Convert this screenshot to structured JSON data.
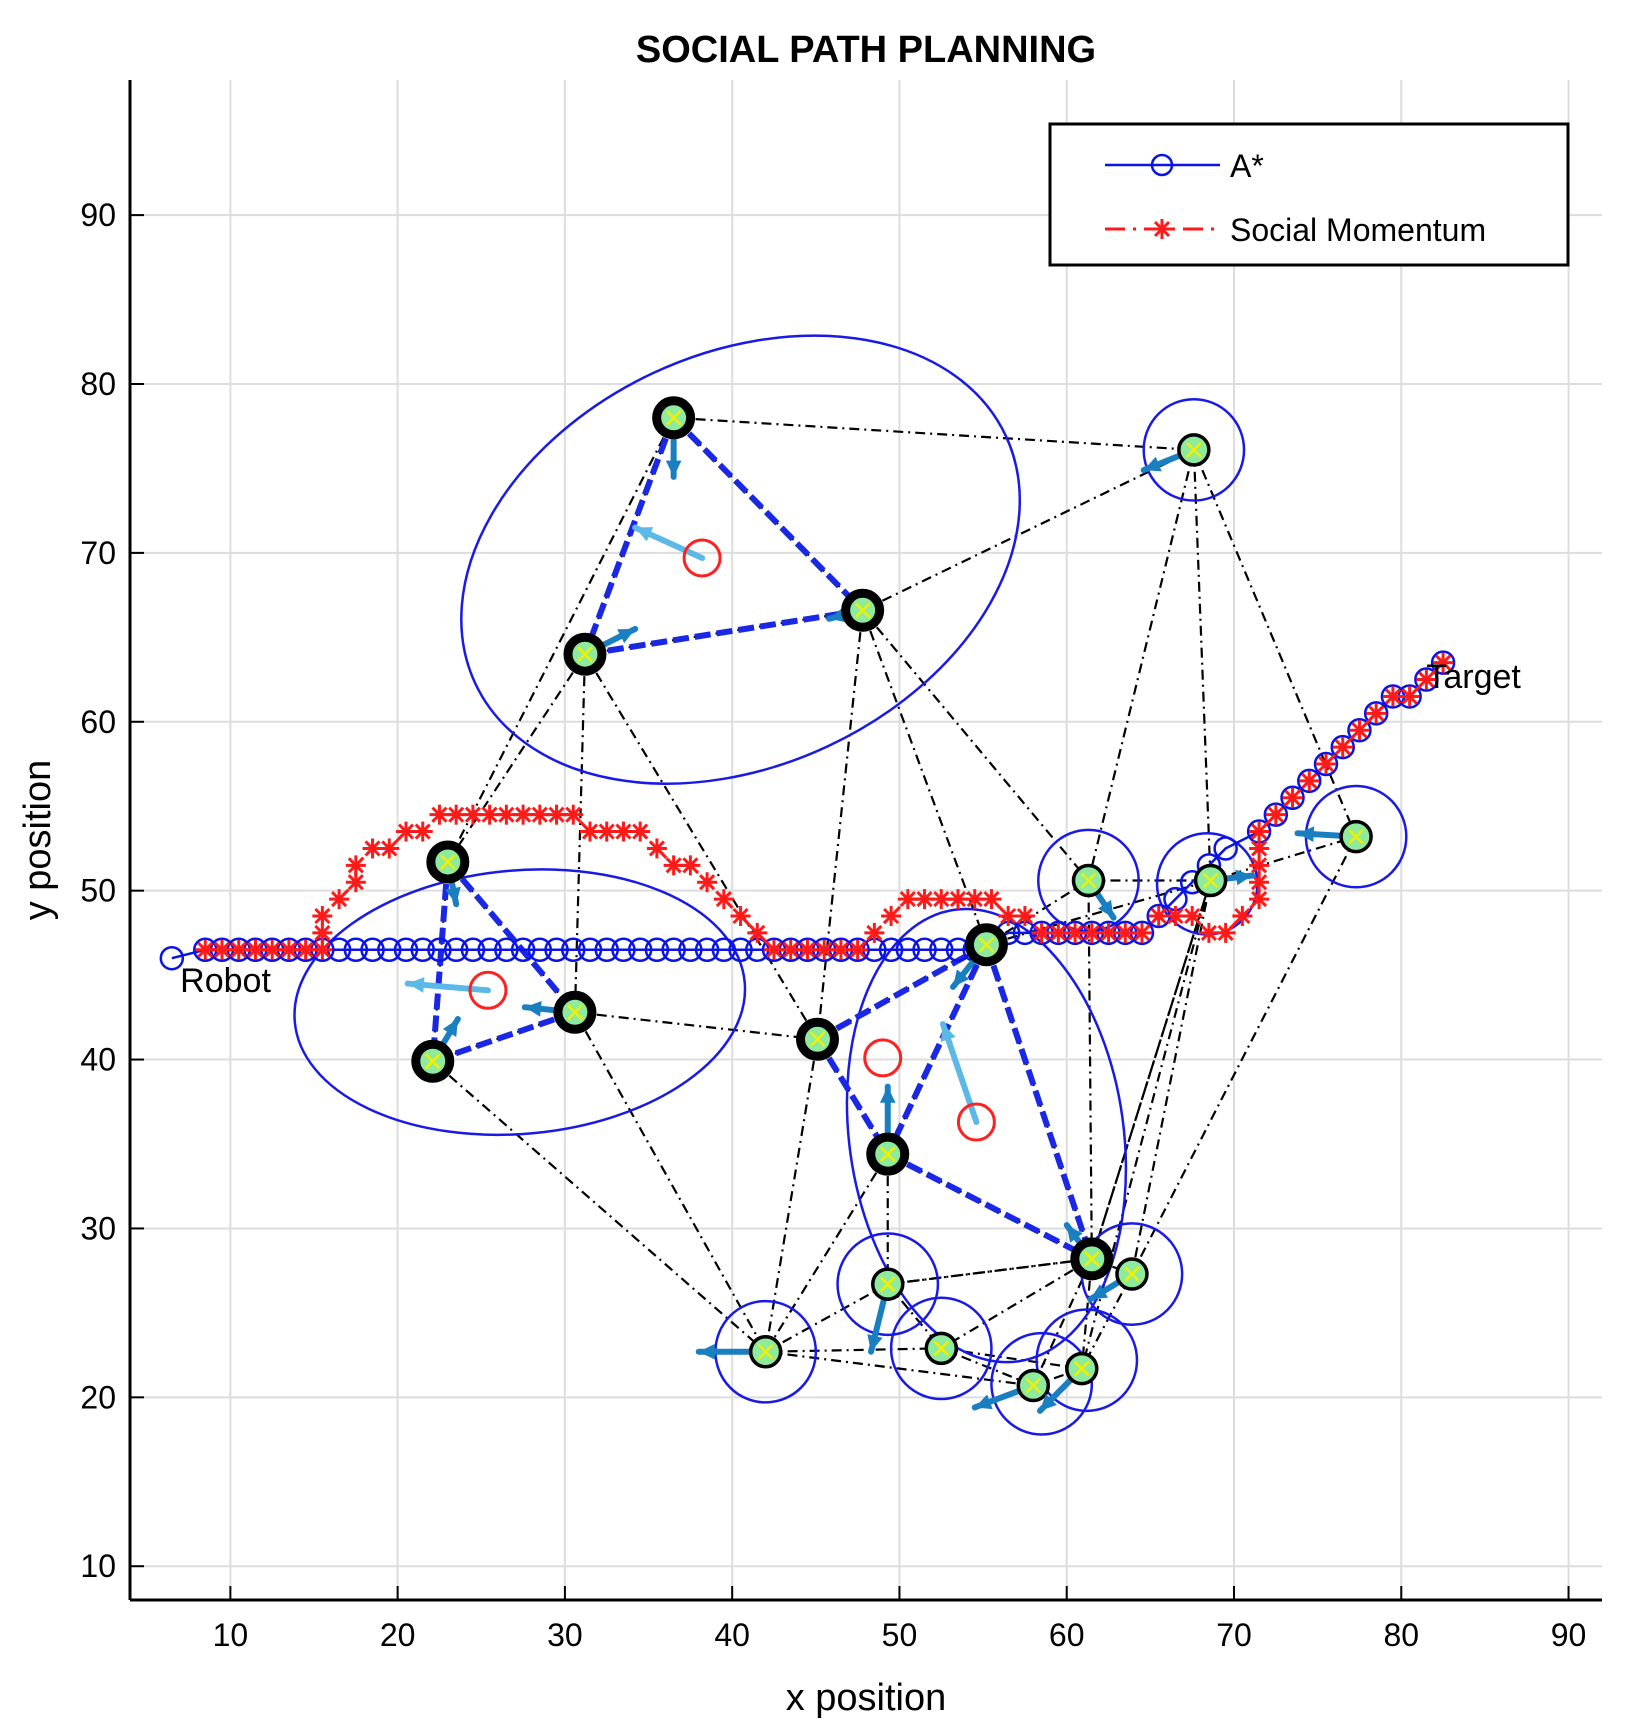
{
  "chart_data": {
    "type": "line",
    "title": "SOCIAL PATH PLANNING",
    "xlabel": "x position",
    "ylabel": "y position",
    "xlim": [
      4,
      92
    ],
    "ylim": [
      8,
      98
    ],
    "xticks": [
      10,
      20,
      30,
      40,
      50,
      60,
      70,
      80,
      90
    ],
    "yticks": [
      10,
      20,
      30,
      40,
      50,
      60,
      70,
      80,
      90
    ],
    "grid": true,
    "legend_position": "top-right",
    "colors": {
      "astar": "#0a14e6",
      "social": "#ff1a1a",
      "edge": "#000000",
      "group_edge": "#1a28e6",
      "person_fill": "#8eea9c",
      "velocity": "#1a7fc0",
      "group_velocity": "#5cb8e6",
      "marker_x": "#f0f000",
      "group_center": "#ff2020",
      "ellipse": "#1a1ae6",
      "grid": "#dddddd"
    },
    "annotations": [
      {
        "text": "Robot",
        "x": 7,
        "y": 44
      },
      {
        "text": "Target",
        "x": 81.5,
        "y": 62
      }
    ],
    "series": [
      {
        "name": "A*",
        "style": "solid-circle",
        "points": [
          [
            6.5,
            46
          ],
          [
            8.5,
            46.5
          ],
          [
            9.5,
            46.5
          ],
          [
            10.5,
            46.5
          ],
          [
            11.5,
            46.5
          ],
          [
            12.5,
            46.5
          ],
          [
            13.5,
            46.5
          ],
          [
            14.5,
            46.5
          ],
          [
            15.5,
            46.5
          ],
          [
            16.5,
            46.5
          ],
          [
            17.5,
            46.5
          ],
          [
            18.5,
            46.5
          ],
          [
            19.5,
            46.5
          ],
          [
            20.5,
            46.5
          ],
          [
            21.5,
            46.5
          ],
          [
            22.5,
            46.5
          ],
          [
            23.5,
            46.5
          ],
          [
            24.5,
            46.5
          ],
          [
            25.5,
            46.5
          ],
          [
            26.5,
            46.5
          ],
          [
            27.5,
            46.5
          ],
          [
            28.5,
            46.5
          ],
          [
            29.5,
            46.5
          ],
          [
            30.5,
            46.5
          ],
          [
            31.5,
            46.5
          ],
          [
            32.5,
            46.5
          ],
          [
            33.5,
            46.5
          ],
          [
            34.5,
            46.5
          ],
          [
            35.5,
            46.5
          ],
          [
            36.5,
            46.5
          ],
          [
            37.5,
            46.5
          ],
          [
            38.5,
            46.5
          ],
          [
            39.5,
            46.5
          ],
          [
            40.5,
            46.5
          ],
          [
            41.5,
            46.5
          ],
          [
            42.5,
            46.5
          ],
          [
            43.5,
            46.5
          ],
          [
            44.5,
            46.5
          ],
          [
            45.5,
            46.5
          ],
          [
            46.5,
            46.5
          ],
          [
            47.5,
            46.5
          ],
          [
            48.5,
            46.5
          ],
          [
            49.5,
            46.5
          ],
          [
            50.5,
            46.5
          ],
          [
            51.5,
            46.5
          ],
          [
            52.5,
            46.5
          ],
          [
            53.5,
            46.5
          ],
          [
            54.5,
            46.5
          ],
          [
            55.5,
            47
          ],
          [
            56.5,
            47.5
          ],
          [
            57.5,
            47.5
          ],
          [
            58.5,
            47.5
          ],
          [
            59.5,
            47.5
          ],
          [
            60.5,
            47.5
          ],
          [
            61.5,
            47.5
          ],
          [
            62.5,
            47.5
          ],
          [
            63.5,
            47.5
          ],
          [
            64.5,
            47.5
          ],
          [
            65.5,
            48.5
          ],
          [
            66.5,
            49.5
          ],
          [
            67.5,
            50.5
          ],
          [
            68.5,
            51.5
          ],
          [
            69.5,
            52.5
          ],
          [
            71.5,
            53.5
          ],
          [
            72.5,
            54.5
          ],
          [
            73.5,
            55.5
          ],
          [
            74.5,
            56.5
          ],
          [
            75.5,
            57.5
          ],
          [
            76.5,
            58.5
          ],
          [
            77.5,
            59.5
          ],
          [
            78.5,
            60.5
          ],
          [
            79.5,
            61.5
          ],
          [
            80.5,
            61.5
          ],
          [
            81.5,
            62.5
          ],
          [
            82.5,
            63.5
          ]
        ]
      },
      {
        "name": "Social Momentum",
        "style": "dashdot-asterisk",
        "points": [
          [
            8.5,
            46.5
          ],
          [
            9.5,
            46.5
          ],
          [
            10.5,
            46.5
          ],
          [
            11.5,
            46.5
          ],
          [
            12.5,
            46.5
          ],
          [
            13.5,
            46.5
          ],
          [
            14.5,
            46.5
          ],
          [
            15.5,
            46.5
          ],
          [
            15.5,
            47.5
          ],
          [
            15.5,
            48.5
          ],
          [
            16.5,
            49.5
          ],
          [
            17.5,
            50.5
          ],
          [
            17.5,
            51.5
          ],
          [
            18.5,
            52.5
          ],
          [
            19.5,
            52.5
          ],
          [
            20.5,
            53.5
          ],
          [
            21.5,
            53.5
          ],
          [
            22.5,
            54.5
          ],
          [
            23.5,
            54.5
          ],
          [
            24.5,
            54.5
          ],
          [
            25.5,
            54.5
          ],
          [
            26.5,
            54.5
          ],
          [
            27.5,
            54.5
          ],
          [
            28.5,
            54.5
          ],
          [
            29.5,
            54.5
          ],
          [
            30.5,
            54.5
          ],
          [
            31.5,
            53.5
          ],
          [
            32.5,
            53.5
          ],
          [
            33.5,
            53.5
          ],
          [
            34.5,
            53.5
          ],
          [
            35.5,
            52.5
          ],
          [
            36.5,
            51.5
          ],
          [
            37.5,
            51.5
          ],
          [
            38.5,
            50.5
          ],
          [
            39.5,
            49.5
          ],
          [
            40.5,
            48.5
          ],
          [
            41.5,
            47.5
          ],
          [
            42.5,
            46.5
          ],
          [
            43.5,
            46.5
          ],
          [
            44.5,
            46.5
          ],
          [
            45.5,
            46.5
          ],
          [
            46.5,
            46.5
          ],
          [
            47.5,
            46.5
          ],
          [
            48.5,
            47.5
          ],
          [
            49.5,
            48.5
          ],
          [
            50.5,
            49.5
          ],
          [
            51.5,
            49.5
          ],
          [
            52.5,
            49.5
          ],
          [
            53.5,
            49.5
          ],
          [
            54.5,
            49.5
          ],
          [
            55.5,
            49.5
          ],
          [
            56.5,
            48.5
          ],
          [
            57.5,
            48.5
          ],
          [
            58.5,
            47.5
          ],
          [
            59.5,
            47.5
          ],
          [
            60.5,
            47.5
          ],
          [
            61.5,
            47.5
          ],
          [
            62.5,
            47.5
          ],
          [
            63.5,
            47.5
          ],
          [
            64.5,
            47.5
          ],
          [
            65.5,
            48.5
          ],
          [
            66.5,
            48.5
          ],
          [
            67.5,
            48.5
          ],
          [
            68.5,
            47.5
          ],
          [
            69.5,
            47.5
          ],
          [
            70.5,
            48.5
          ],
          [
            71.5,
            49.5
          ],
          [
            71.5,
            50.5
          ],
          [
            71.5,
            51.5
          ],
          [
            71.5,
            52.5
          ],
          [
            71.5,
            53.5
          ],
          [
            72.5,
            54.5
          ],
          [
            73.5,
            55.5
          ],
          [
            74.5,
            56.5
          ],
          [
            75.5,
            57.5
          ],
          [
            76.5,
            58.5
          ],
          [
            77.5,
            59.5
          ],
          [
            78.5,
            60.5
          ],
          [
            79.5,
            61.5
          ],
          [
            80.5,
            61.5
          ],
          [
            81.5,
            62.5
          ],
          [
            82.5,
            63.5
          ]
        ]
      }
    ],
    "people": [
      {
        "x": 36.5,
        "y": 78,
        "grouped": true,
        "vx": 0,
        "vy": -3.5
      },
      {
        "x": 47.8,
        "y": 66.6,
        "grouped": true,
        "vx": -2,
        "vy": -0.5
      },
      {
        "x": 31.2,
        "y": 64,
        "grouped": true,
        "vx": 3,
        "vy": 1.5
      },
      {
        "x": 67.6,
        "y": 76.1,
        "grouped": false,
        "vx": -3,
        "vy": -1.2
      },
      {
        "x": 23,
        "y": 51.7,
        "grouped": true,
        "vx": 0.5,
        "vy": -2.5
      },
      {
        "x": 30.6,
        "y": 42.8,
        "grouped": true,
        "vx": -3,
        "vy": 0.3
      },
      {
        "x": 22.1,
        "y": 39.9,
        "grouped": true,
        "vx": 1.5,
        "vy": 2.5
      },
      {
        "x": 45.1,
        "y": 41.2,
        "grouped": true,
        "vx": 0,
        "vy": 0
      },
      {
        "x": 55.2,
        "y": 46.8,
        "grouped": true,
        "vx": -2,
        "vy": -2.5
      },
      {
        "x": 49.3,
        "y": 34.4,
        "grouped": true,
        "vx": 0,
        "vy": 4
      },
      {
        "x": 61.5,
        "y": 28.2,
        "grouped": true,
        "vx": -1.5,
        "vy": 2
      },
      {
        "x": 61.3,
        "y": 50.6,
        "grouped": false,
        "vx": 1.5,
        "vy": -2.2
      },
      {
        "x": 68.6,
        "y": 50.6,
        "grouped": false,
        "vx": 2.5,
        "vy": 0.3
      },
      {
        "x": 77.3,
        "y": 53.2,
        "grouped": false,
        "vx": -3.5,
        "vy": 0.2
      },
      {
        "x": 63.9,
        "y": 27.3,
        "grouped": false,
        "vx": -2.5,
        "vy": -1.5
      },
      {
        "x": 49.3,
        "y": 26.7,
        "grouped": false,
        "vx": -1,
        "vy": -4
      },
      {
        "x": 42,
        "y": 22.7,
        "grouped": false,
        "vx": -4,
        "vy": 0
      },
      {
        "x": 52.5,
        "y": 22.9,
        "grouped": false,
        "vx": 0,
        "vy": 0
      },
      {
        "x": 58,
        "y": 20.7,
        "grouped": false,
        "vx": -3.5,
        "vy": -1.3
      },
      {
        "x": 60.9,
        "y": 21.7,
        "grouped": false,
        "vx": -2.5,
        "vy": -2.5
      }
    ],
    "edges": [
      [
        0,
        1
      ],
      [
        0,
        2
      ],
      [
        0,
        3
      ],
      [
        1,
        3
      ],
      [
        1,
        2
      ],
      [
        2,
        4
      ],
      [
        2,
        5
      ],
      [
        2,
        7
      ],
      [
        1,
        7
      ],
      [
        1,
        8
      ],
      [
        1,
        11
      ],
      [
        0,
        4
      ],
      [
        3,
        11
      ],
      [
        3,
        12
      ],
      [
        3,
        13
      ],
      [
        4,
        5
      ],
      [
        4,
        6
      ],
      [
        5,
        6
      ],
      [
        5,
        7
      ],
      [
        5,
        16
      ],
      [
        6,
        16
      ],
      [
        7,
        8
      ],
      [
        7,
        9
      ],
      [
        7,
        16
      ],
      [
        8,
        9
      ],
      [
        8,
        10
      ],
      [
        8,
        11
      ],
      [
        8,
        12
      ],
      [
        9,
        10
      ],
      [
        9,
        15
      ],
      [
        9,
        16
      ],
      [
        10,
        12
      ],
      [
        10,
        14
      ],
      [
        10,
        15
      ],
      [
        10,
        17
      ],
      [
        10,
        18
      ],
      [
        10,
        19
      ],
      [
        11,
        12
      ],
      [
        11,
        10
      ],
      [
        12,
        13
      ],
      [
        12,
        14
      ],
      [
        12,
        19
      ],
      [
        13,
        14
      ],
      [
        14,
        19
      ],
      [
        15,
        16
      ],
      [
        15,
        17
      ],
      [
        15,
        10
      ],
      [
        16,
        17
      ],
      [
        16,
        18
      ],
      [
        17,
        18
      ],
      [
        17,
        19
      ],
      [
        18,
        19
      ],
      [
        14,
        10
      ],
      [
        12,
        10
      ]
    ],
    "group_edges": [
      [
        0,
        1
      ],
      [
        0,
        2
      ],
      [
        1,
        2
      ],
      [
        4,
        5
      ],
      [
        4,
        6
      ],
      [
        5,
        6
      ],
      [
        7,
        8
      ],
      [
        7,
        9
      ],
      [
        8,
        9
      ],
      [
        8,
        10
      ],
      [
        9,
        10
      ]
    ],
    "group_centers": [
      {
        "x": 38.2,
        "y": 69.7,
        "vx": -4,
        "vy": 1.8
      },
      {
        "x": 25.4,
        "y": 44.1,
        "vx": -4.8,
        "vy": 0.4
      },
      {
        "x": 54.6,
        "y": 36.3,
        "vx": -2,
        "vy": 5.8
      },
      {
        "x": 49,
        "y": 40.1,
        "vx": 0,
        "vy": 0
      }
    ],
    "ellipses": [
      {
        "cx": 40.5,
        "cy": 69.6,
        "rx": 17.5,
        "ry": 12.2,
        "angle": -25
      },
      {
        "cx": 27.3,
        "cy": 43.4,
        "rx": 13.5,
        "ry": 7.8,
        "angle": -5
      },
      {
        "cx": 55.2,
        "cy": 35.5,
        "rx": 8.2,
        "ry": 13.5,
        "angle": -8
      },
      {
        "cx": 67.6,
        "cy": 76.1,
        "rx": 3,
        "ry": 3,
        "angle": 0
      },
      {
        "cx": 61.3,
        "cy": 50.6,
        "rx": 3,
        "ry": 3,
        "angle": 0
      },
      {
        "cx": 68.4,
        "cy": 50.4,
        "rx": 3,
        "ry": 3,
        "angle": 0
      },
      {
        "cx": 77.3,
        "cy": 53.2,
        "rx": 3,
        "ry": 3,
        "angle": 0
      },
      {
        "cx": 63.9,
        "cy": 27.3,
        "rx": 3,
        "ry": 3,
        "angle": 0
      },
      {
        "cx": 49.3,
        "cy": 26.7,
        "rx": 3,
        "ry": 3,
        "angle": 0
      },
      {
        "cx": 42,
        "cy": 22.7,
        "rx": 3,
        "ry": 3,
        "angle": 0
      },
      {
        "cx": 52.5,
        "cy": 22.9,
        "rx": 3,
        "ry": 3,
        "angle": 0
      },
      {
        "cx": 58.5,
        "cy": 20.8,
        "rx": 3,
        "ry": 3,
        "angle": 0
      },
      {
        "cx": 61.2,
        "cy": 22.2,
        "rx": 3,
        "ry": 3,
        "angle": 0
      }
    ]
  }
}
